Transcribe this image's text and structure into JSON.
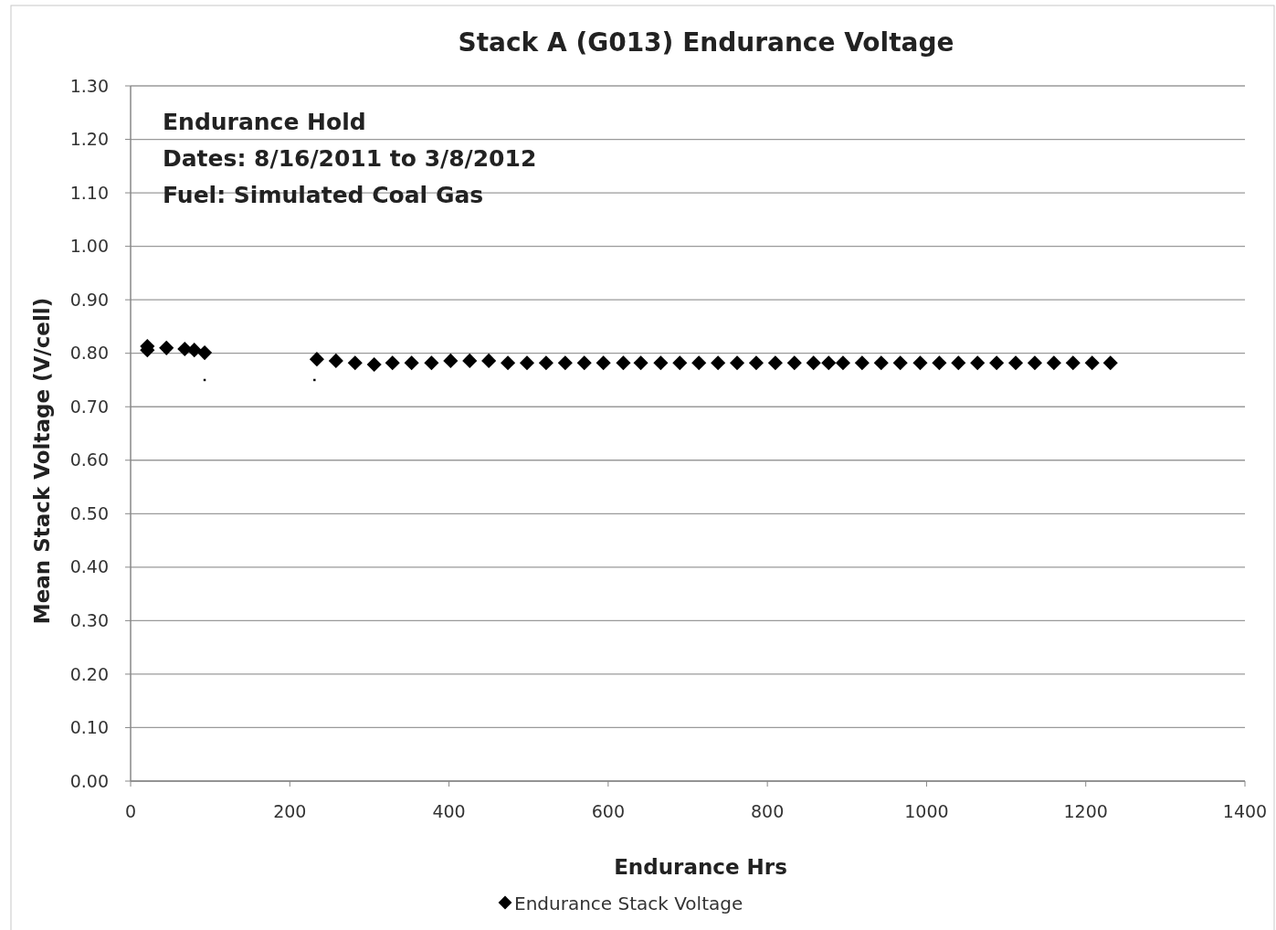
{
  "chart_data": {
    "type": "scatter",
    "title": "Stack A (G013) Endurance Voltage",
    "xlabel": "Endurance Hrs",
    "ylabel": "Mean Stack Voltage (V/cell)",
    "annotations": [
      "Endurance Hold",
      "Dates: 8/16/2011 to 3/8/2012",
      "Fuel: Simulated Coal Gas"
    ],
    "xlim": [
      0,
      1400
    ],
    "xticks": [
      0,
      200,
      400,
      600,
      800,
      1000,
      1200,
      1400
    ],
    "ylim": [
      0,
      1.3
    ],
    "yticks": [
      {
        "value": 0,
        "label": "0.00"
      },
      {
        "value": 0.1,
        "label": "0.10"
      },
      {
        "value": 0.2,
        "label": "0.20"
      },
      {
        "value": 0.3,
        "label": "0.30"
      },
      {
        "value": 0.4,
        "label": "0.40"
      },
      {
        "value": 0.5,
        "label": "0.50"
      },
      {
        "value": 0.6,
        "label": "0.60"
      },
      {
        "value": 0.7,
        "label": "0.70"
      },
      {
        "value": 0.8,
        "label": "0.80"
      },
      {
        "value": 0.9,
        "label": "0.90"
      },
      {
        "value": 1,
        "label": "1.00"
      },
      {
        "value": 1.1,
        "label": "1.10"
      },
      {
        "value": 1.2,
        "label": "1.20"
      },
      {
        "value": 1.3,
        "label": "1.30"
      }
    ],
    "grid": "y",
    "legend": "bottom",
    "marker": "diamond",
    "series": [
      {
        "name": "Endurance Stack Voltage",
        "color": "#000000",
        "x": [
          21,
          21,
          45,
          68,
          80,
          93,
          234,
          258,
          282,
          306,
          329,
          353,
          378,
          402,
          426,
          450,
          474,
          498,
          522,
          546,
          570,
          594,
          619,
          641,
          666,
          690,
          714,
          738,
          762,
          786,
          810,
          834,
          858,
          877,
          895,
          919,
          943,
          967,
          992,
          1016,
          1040,
          1064,
          1088,
          1112,
          1136,
          1160,
          1184,
          1208,
          1231
        ],
        "values": [
          0.813,
          0.806,
          0.81,
          0.808,
          0.806,
          0.801,
          0.789,
          0.786,
          0.782,
          0.779,
          0.782,
          0.782,
          0.782,
          0.786,
          0.786,
          0.786,
          0.782,
          0.782,
          0.782,
          0.782,
          0.782,
          0.782,
          0.782,
          0.782,
          0.782,
          0.782,
          0.782,
          0.782,
          0.782,
          0.782,
          0.782,
          0.782,
          0.782,
          0.782,
          0.782,
          0.782,
          0.782,
          0.782,
          0.782,
          0.782,
          0.782,
          0.782,
          0.782,
          0.782,
          0.782,
          0.782,
          0.782,
          0.782,
          0.782
        ]
      },
      {
        "color": "#000000",
        "marker": "square",
        "x": [
          93,
          231
        ],
        "values": [
          0.75,
          0.75
        ]
      }
    ]
  }
}
